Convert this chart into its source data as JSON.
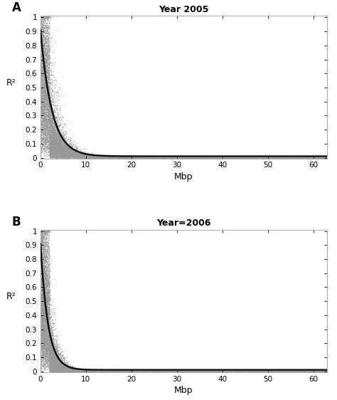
{
  "panel_A_title": "Year 2005",
  "panel_B_title": "Year=2006",
  "xlabel": "Mbp",
  "ylabel": "R²",
  "xlim": [
    0,
    63
  ],
  "ylim": [
    -0.005,
    1.01
  ],
  "xticks": [
    0,
    10,
    20,
    30,
    40,
    50,
    60
  ],
  "yticks": [
    0,
    0.1,
    0.2,
    0.3,
    0.4,
    0.5,
    0.6,
    0.7,
    0.8,
    0.9,
    1
  ],
  "scatter_color": "#999999",
  "scatter_alpha": 0.5,
  "scatter_size": 1.2,
  "curve_color": "#111111",
  "curve_lw": 1.8,
  "n_points_A": 20000,
  "n_points_B": 25000,
  "panel_label_fontsize": 12,
  "title_fontsize": 9,
  "axis_label_fontsize": 9,
  "tick_fontsize": 7.5,
  "background_color": "#ffffff",
  "seed_A": 42,
  "seed_B": 123
}
